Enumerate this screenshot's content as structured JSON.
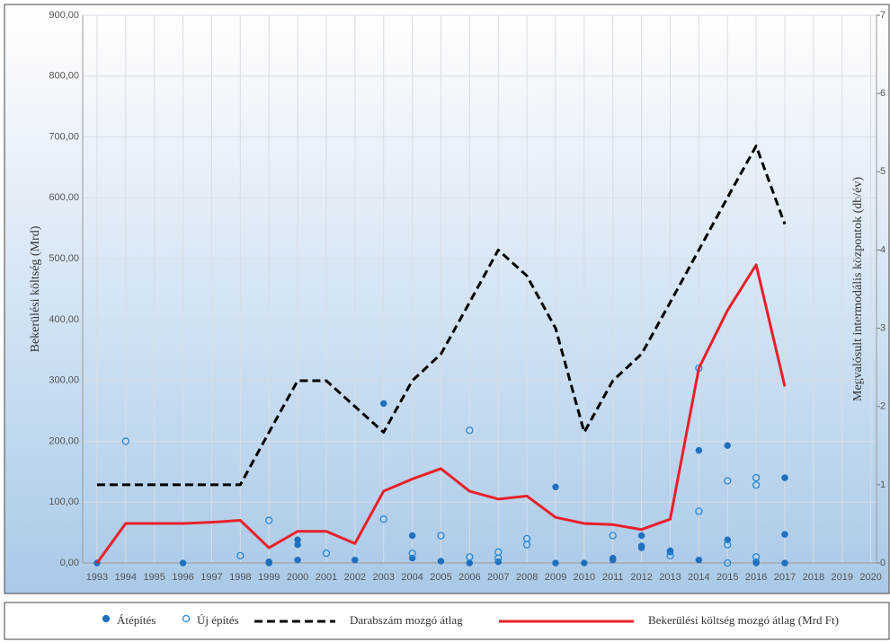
{
  "chart_data": {
    "type": "line",
    "y_label": "Bekerülési  költség  (Mrd)",
    "y2_label": "Megvalósult  intermodális  központok  (db/év)",
    "xlim": [
      1992.5,
      2020.2
    ],
    "xticks": [
      1993,
      1994,
      1995,
      1996,
      1997,
      1998,
      1999,
      2000,
      2001,
      2002,
      2003,
      2004,
      2005,
      2006,
      2007,
      2008,
      2009,
      2010,
      2011,
      2012,
      2013,
      2014,
      2015,
      2016,
      2017,
      2018,
      2019,
      2020
    ],
    "ylim": [
      0,
      900
    ],
    "yticks": [
      {
        "value": 0,
        "label": "0,00"
      },
      {
        "value": 100,
        "label": "100,00"
      },
      {
        "value": 200,
        "label": "200,00"
      },
      {
        "value": 300,
        "label": "300,00"
      },
      {
        "value": 400,
        "label": "400,00"
      },
      {
        "value": 500,
        "label": "500,00"
      },
      {
        "value": 600,
        "label": "600,00"
      },
      {
        "value": 700,
        "label": "700,00"
      },
      {
        "value": 800,
        "label": "800,00"
      },
      {
        "value": 900,
        "label": "900,00"
      }
    ],
    "y2lim": [
      0,
      7
    ],
    "y2ticks": [
      0,
      1,
      2,
      3,
      4,
      5,
      6,
      7
    ],
    "grid": true,
    "legend": "bottom",
    "series": [
      {
        "name": "Átépítés",
        "type": "scatter",
        "marker": "filled",
        "color": "#1f6fbf",
        "x": [
          1993,
          1996,
          1999,
          1999,
          2000,
          2000,
          2000,
          2002,
          2003,
          2004,
          2004,
          2005,
          2006,
          2007,
          2009,
          2009,
          2010,
          2011,
          2011,
          2012,
          2012,
          2012,
          2013,
          2013,
          2014,
          2014,
          2015,
          2015,
          2016,
          2016,
          2017,
          2017,
          2017
        ],
        "values": [
          0,
          0,
          0,
          2,
          38,
          30,
          5,
          5,
          262,
          45,
          8,
          3,
          0,
          2,
          125,
          0,
          0,
          8,
          5,
          45,
          25,
          28,
          20,
          18,
          185,
          5,
          193,
          38,
          0,
          2,
          140,
          47,
          0
        ]
      },
      {
        "name": "Új építés",
        "type": "scatter",
        "marker": "hollow",
        "color": "#2a86d1",
        "x": [
          1994,
          1998,
          1999,
          2001,
          2003,
          2004,
          2005,
          2006,
          2006,
          2007,
          2007,
          2008,
          2008,
          2011,
          2013,
          2014,
          2014,
          2015,
          2015,
          2015,
          2016,
          2016,
          2016
        ],
        "values": [
          200,
          12,
          70,
          16,
          72,
          16,
          45,
          218,
          10,
          18,
          8,
          40,
          30,
          45,
          12,
          320,
          85,
          135,
          30,
          0,
          140,
          128,
          10
        ]
      },
      {
        "name": "Darabszám mozgó átlag",
        "type": "line",
        "dash": true,
        "axis": "y2",
        "color": "#000000",
        "x": [
          1993,
          1994,
          1995,
          1996,
          1997,
          1998,
          1999,
          2000,
          2001,
          2002,
          2003,
          2004,
          2005,
          2006,
          2007,
          2008,
          2009,
          2010,
          2011,
          2012,
          2013,
          2014,
          2015,
          2016,
          2017
        ],
        "values": [
          1,
          1,
          1,
          1,
          1,
          1,
          1.67,
          2.33,
          2.33,
          2,
          1.67,
          2.33,
          2.67,
          3.33,
          4,
          3.67,
          3,
          1.67,
          2.33,
          2.67,
          3.33,
          4,
          4.67,
          5.33,
          4.33
        ]
      },
      {
        "name": "Bekerülési költség mozgó átlag (Mrd Ft)",
        "type": "line",
        "color": "#e8202a",
        "x": [
          1993,
          1994,
          1995,
          1996,
          1997,
          1998,
          1999,
          2000,
          2001,
          2002,
          2003,
          2004,
          2005,
          2006,
          2007,
          2008,
          2009,
          2010,
          2011,
          2012,
          2013,
          2014,
          2015,
          2016,
          2017
        ],
        "values": [
          0,
          65,
          65,
          65,
          67,
          70,
          25,
          52,
          52,
          32,
          118,
          138,
          155,
          118,
          105,
          110,
          75,
          65,
          63,
          55,
          72,
          320,
          415,
          490,
          290
        ]
      }
    ]
  }
}
